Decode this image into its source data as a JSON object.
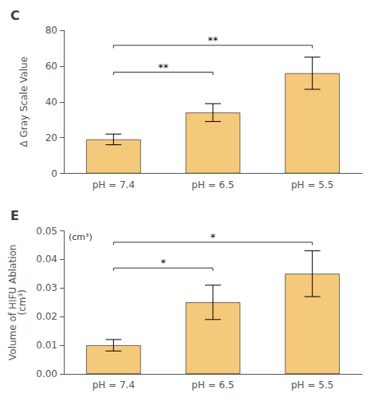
{
  "chart_data": [
    {
      "type": "bar",
      "title": "C",
      "ylabel": "Δ Gray Scale Value",
      "categories": [
        "pH = 7.4",
        "pH = 6.5",
        "pH = 5.5"
      ],
      "values": [
        19,
        34,
        56
      ],
      "errors": [
        3.0,
        5.0,
        9.0
      ],
      "color": "#F5C97A",
      "ylim": [
        0,
        80
      ],
      "yticks": [
        0,
        20,
        40,
        60,
        80
      ],
      "grid": false,
      "annotations": [
        {
          "from": "pH = 7.4",
          "to": "pH = 5.5",
          "y": 70,
          "label": "**"
        },
        {
          "from": "pH = 7.4",
          "to": "pH = 6.5",
          "y": 55,
          "label": "**"
        }
      ]
    },
    {
      "type": "bar",
      "title": "E",
      "ylabel": "Volume of HIFU Ablation\n(cm³)",
      "categories": [
        "pH = 7.4",
        "pH = 6.5",
        "pH = 5.5"
      ],
      "values": [
        0.01,
        0.025,
        0.035
      ],
      "errors": [
        0.002,
        0.006,
        0.008
      ],
      "color": "#F5C97A",
      "ylim": [
        0,
        0.05
      ],
      "yticks": [
        {
          "value": 0,
          "label": "0.00"
        },
        {
          "value": 0.01,
          "label": "0.01"
        },
        {
          "value": 0.02,
          "label": "0.02"
        },
        {
          "value": 0.03,
          "label": "0.03"
        },
        {
          "value": 0.04,
          "label": "0.04"
        },
        {
          "value": 0.05,
          "label": "0.05"
        }
      ],
      "grid": false,
      "annotations": [
        {
          "label": "(cm³)"
        },
        {
          "from": "pH = 7.4",
          "to": "pH = 6.5",
          "y": 0.036,
          "label": "*"
        },
        {
          "from": "pH = 7.4",
          "to": "pH = 5.5",
          "y": 0.045,
          "label": "*"
        }
      ]
    }
  ]
}
